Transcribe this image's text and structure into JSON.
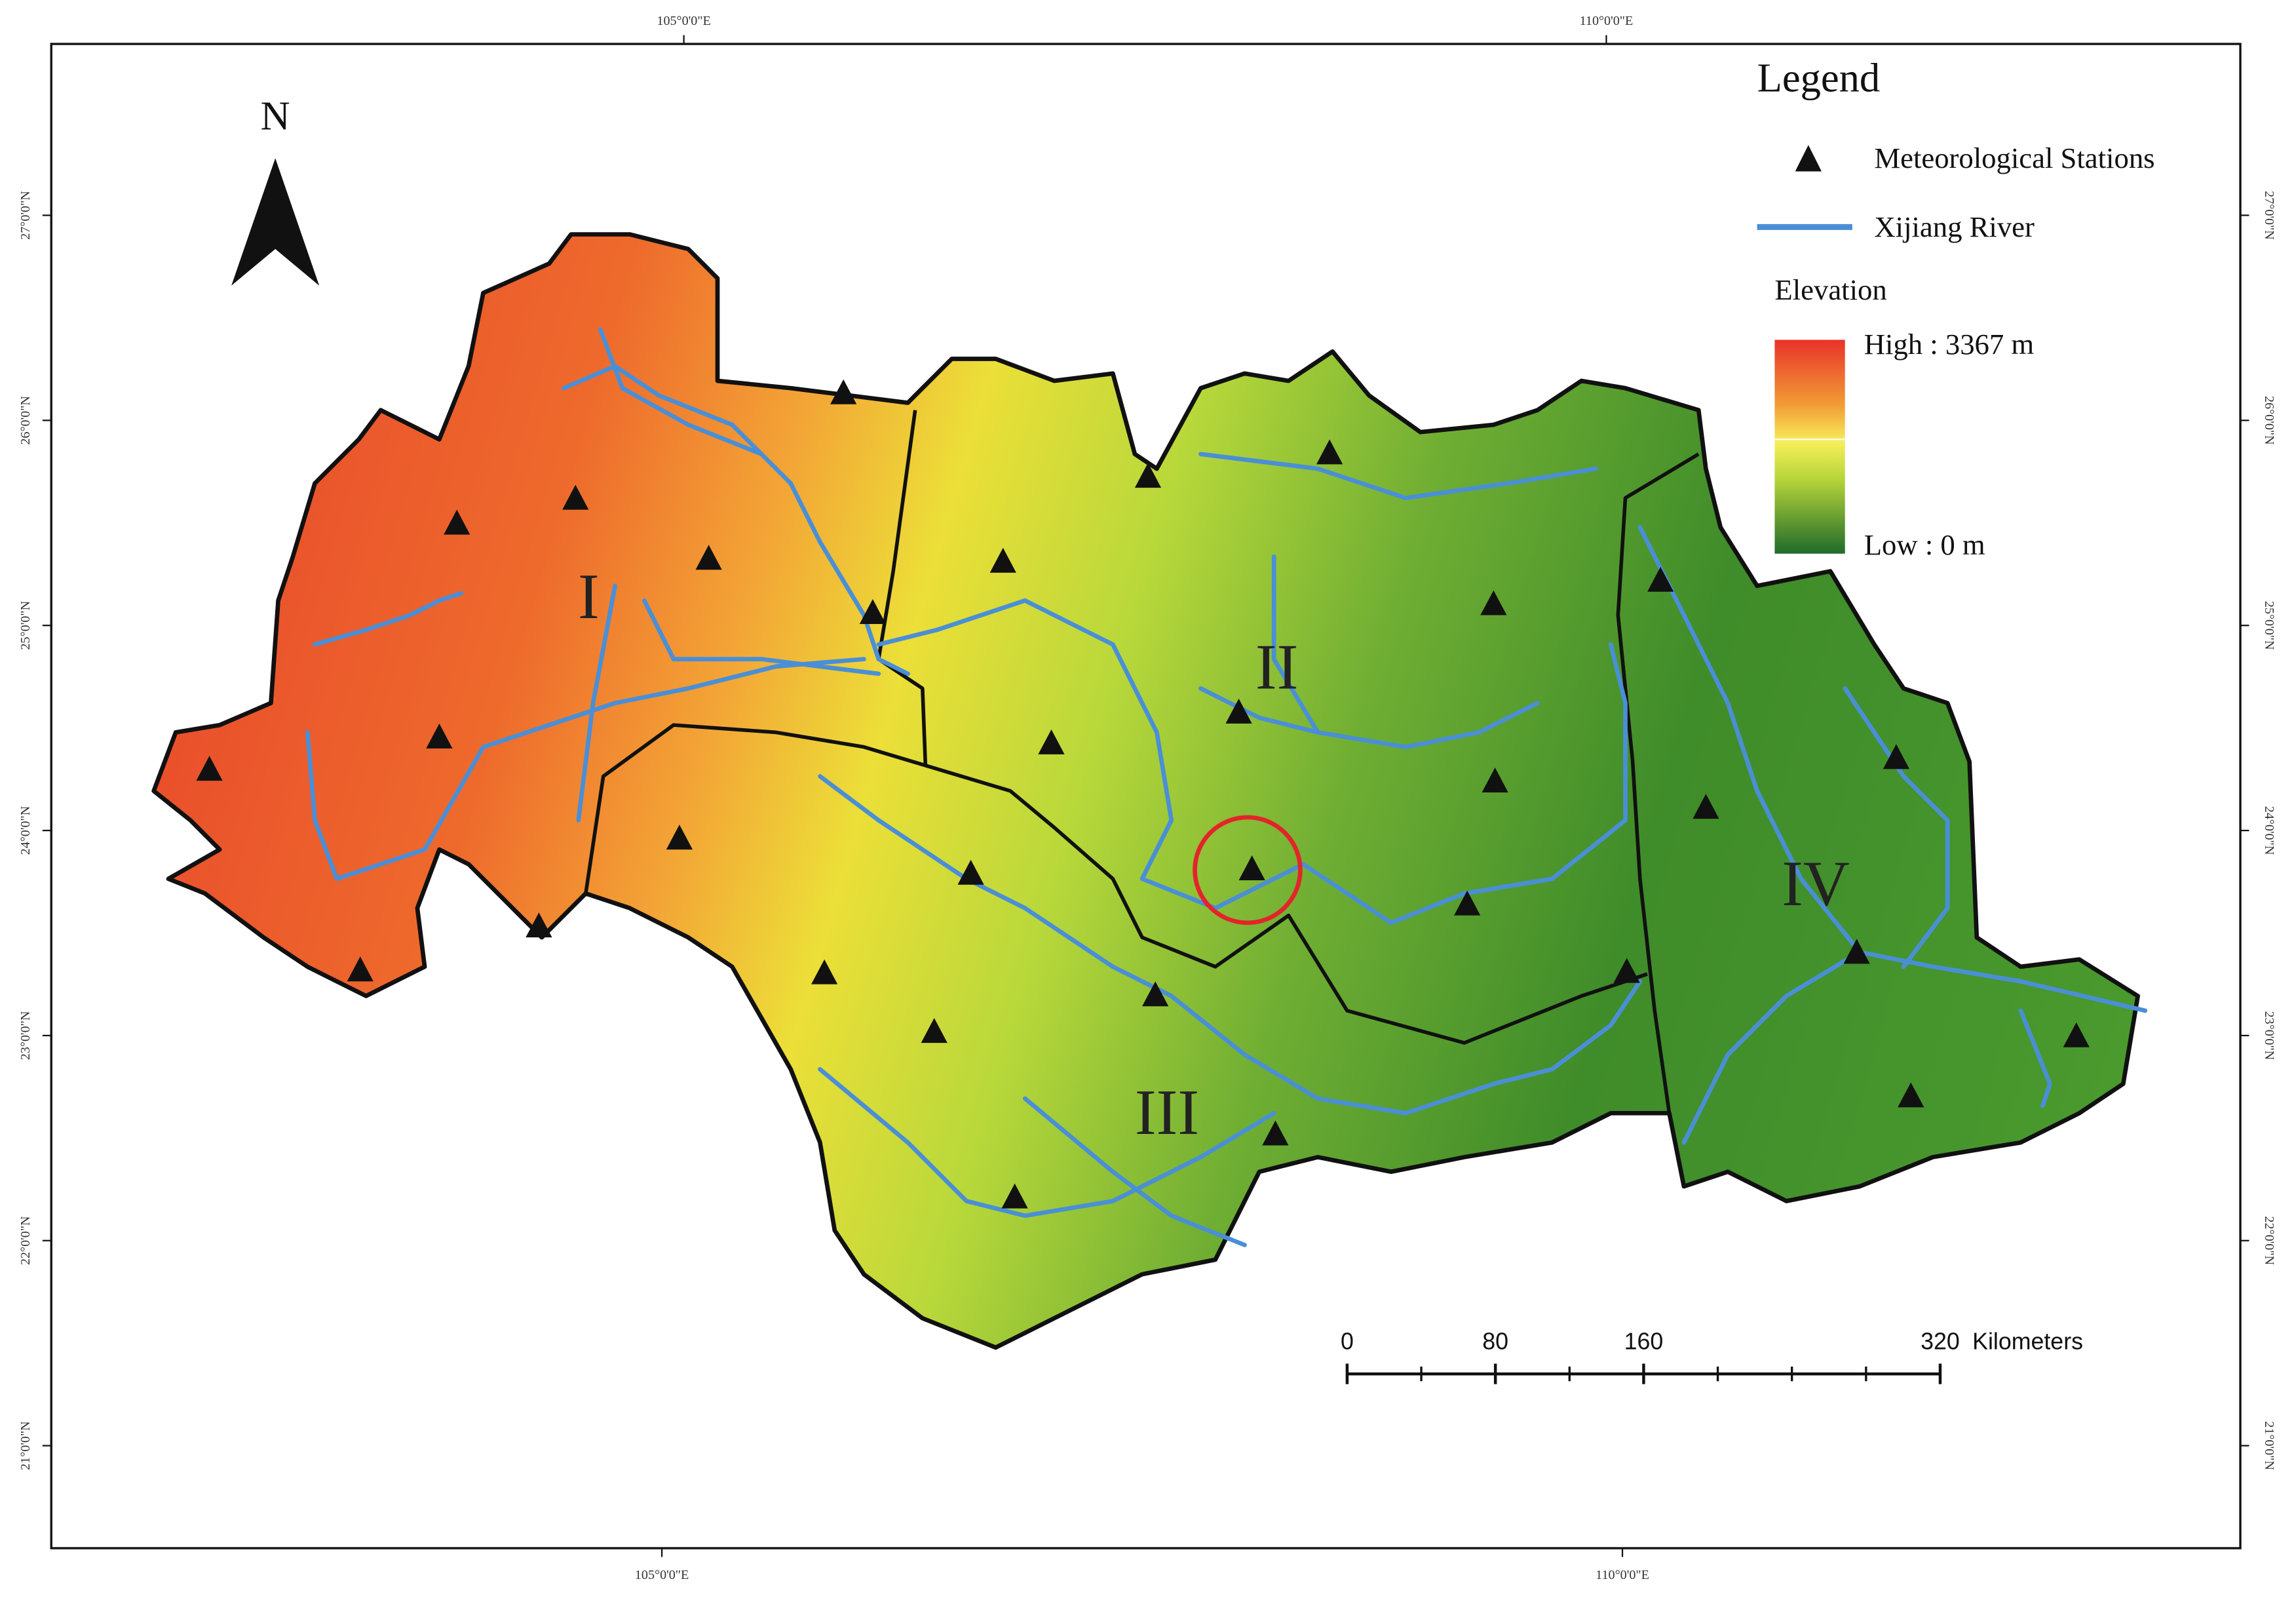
{
  "north_arrow": "N",
  "legend": {
    "title": "Legend",
    "items": [
      "Meteorological Stations",
      "Xijiang River"
    ],
    "elevation": {
      "title": "Elevation",
      "high": "High : 3367 m",
      "low": "Low : 0 m"
    }
  },
  "regions": [
    "I",
    "II",
    "III",
    "IV"
  ],
  "graticule": {
    "top": [
      "105°0'0\"E",
      "110°0'0\"E"
    ],
    "bottom": [
      "105°0'0\"E",
      "110°0'0\"E"
    ],
    "left": [
      "27°0'0\"N",
      "26°0'0\"N",
      "25°0'0\"N",
      "24°0'0\"N",
      "23°0'0\"N",
      "22°0'0\"N",
      "21°0'0\"N"
    ],
    "right": [
      "27°0'0\"N",
      "26°0'0\"N",
      "25°0'0\"N",
      "24°0'0\"N",
      "23°0'0\"N",
      "22°0'0\"N",
      "21°0'0\"N"
    ]
  },
  "scale_bar": {
    "ticks": [
      0,
      80,
      160,
      320
    ],
    "unit": "Kilometers"
  }
}
